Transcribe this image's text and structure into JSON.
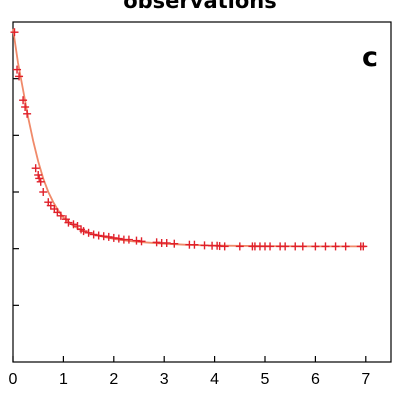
{
  "chart_data": {
    "type": "scatter",
    "title": "observations",
    "panel_label": "c",
    "xlabel": "",
    "ylabel": "",
    "xlim": [
      0,
      7.5
    ],
    "ylim": [
      0,
      1
    ],
    "xticks": [
      "0",
      "1",
      "2",
      "3",
      "4",
      "5",
      "6",
      "7"
    ],
    "y_tick_marks": 6,
    "grid": false,
    "legend": "none",
    "colors": {
      "points": "#e0202a",
      "fit": "#f08a6a",
      "axis": "#000000"
    },
    "series": [
      {
        "kind": "points",
        "marker": "+",
        "x": [
          0.03,
          0.08,
          0.12,
          0.2,
          0.24,
          0.28,
          0.45,
          0.5,
          0.52,
          0.55,
          0.6,
          0.7,
          0.75,
          0.82,
          0.88,
          0.95,
          1.05,
          1.1,
          1.2,
          1.28,
          1.35,
          1.4,
          1.5,
          1.6,
          1.7,
          1.8,
          1.9,
          2.0,
          2.1,
          2.2,
          2.3,
          2.45,
          2.55,
          2.85,
          2.95,
          3.05,
          3.2,
          3.5,
          3.6,
          3.8,
          3.95,
          4.05,
          4.1,
          4.2,
          4.5,
          4.75,
          4.8,
          4.9,
          5.0,
          5.1,
          5.3,
          5.4,
          5.6,
          5.75,
          6.0,
          6.2,
          6.4,
          6.6,
          6.9,
          6.95
        ],
        "y": [
          0.97,
          0.86,
          0.84,
          0.77,
          0.75,
          0.73,
          0.57,
          0.55,
          0.54,
          0.53,
          0.5,
          0.47,
          0.46,
          0.45,
          0.44,
          0.43,
          0.42,
          0.41,
          0.405,
          0.4,
          0.39,
          0.385,
          0.38,
          0.375,
          0.372,
          0.37,
          0.368,
          0.365,
          0.363,
          0.36,
          0.36,
          0.357,
          0.355,
          0.352,
          0.35,
          0.35,
          0.348,
          0.345,
          0.345,
          0.343,
          0.342,
          0.342,
          0.341,
          0.34,
          0.34,
          0.34,
          0.34,
          0.34,
          0.34,
          0.34,
          0.34,
          0.34,
          0.34,
          0.34,
          0.34,
          0.34,
          0.34,
          0.34,
          0.34,
          0.34
        ]
      },
      {
        "kind": "fit",
        "x": [
          0,
          0.1,
          0.2,
          0.3,
          0.4,
          0.5,
          0.6,
          0.7,
          0.8,
          0.9,
          1.0,
          1.2,
          1.4,
          1.6,
          1.8,
          2.0,
          2.3,
          2.6,
          3.0,
          3.4,
          3.8,
          4.2,
          5.0,
          6.0,
          7.0
        ],
        "y": [
          0.98,
          0.88,
          0.8,
          0.72,
          0.65,
          0.59,
          0.54,
          0.5,
          0.47,
          0.445,
          0.425,
          0.4,
          0.385,
          0.375,
          0.368,
          0.362,
          0.356,
          0.352,
          0.348,
          0.345,
          0.343,
          0.342,
          0.341,
          0.34,
          0.34
        ]
      }
    ]
  }
}
